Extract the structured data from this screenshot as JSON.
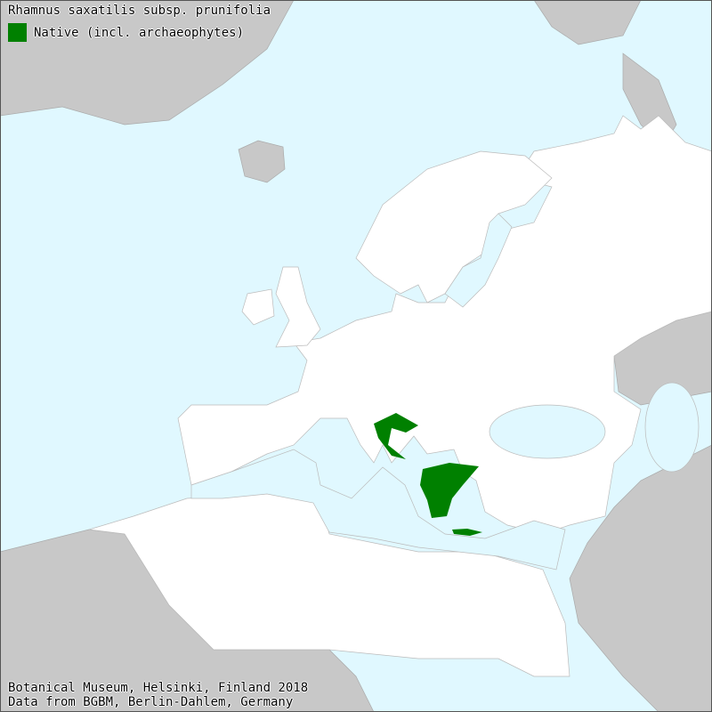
{
  "title": "Rhamnus saxatilis subsp. prunifolia",
  "legend": [
    {
      "label": "Native (incl. archaeophytes)",
      "color": "#008000"
    }
  ],
  "footer": {
    "line1": "Botanical Museum, Helsinki, Finland 2018",
    "line2": "Data from BGBM, Berlin-Dahlem, Germany"
  },
  "colors": {
    "sea": "#e0f8ff",
    "land_in_scope": "#ffffff",
    "land_out_of_scope": "#c8c8c8",
    "native": "#008000"
  },
  "distribution": [
    "Greece",
    "Crete",
    "Croatia"
  ]
}
